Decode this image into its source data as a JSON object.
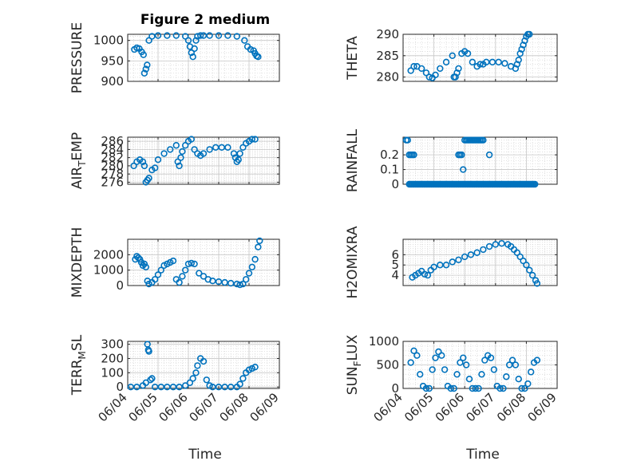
{
  "figure_title": "Figure 2 medium",
  "xlabel": "Time",
  "xticks": [
    "06/04",
    "06/05",
    "06/06",
    "06/07",
    "06/08",
    "06/09"
  ],
  "marker_color": "#0072BD",
  "chart_data": [
    {
      "type": "scatter",
      "ylabel": "PRESSURE",
      "ylim": [
        900,
        1015
      ],
      "yticks": [
        900,
        950,
        1000
      ],
      "xlim": [
        0,
        5
      ],
      "x": [
        0.22,
        0.3,
        0.38,
        0.46,
        0.52,
        0.55,
        0.6,
        0.64,
        0.7,
        0.8,
        1,
        1.3,
        1.6,
        1.9,
        2,
        2.05,
        2.1,
        2.15,
        2.2,
        2.25,
        2.3,
        2.4,
        2.5,
        2.7,
        3,
        3.3,
        3.6,
        3.85,
        3.95,
        4.05,
        4.15,
        4.2,
        4.25,
        4.3
      ],
      "y": [
        978,
        982,
        980,
        972,
        965,
        920,
        930,
        940,
        1000,
        1010,
        1012,
        1012,
        1012,
        1010,
        1000,
        985,
        970,
        960,
        980,
        1000,
        1010,
        1012,
        1012,
        1012,
        1012,
        1012,
        1010,
        1000,
        985,
        978,
        975,
        968,
        962,
        960
      ]
    },
    {
      "type": "scatter",
      "ylabel": "THETA",
      "ylim": [
        279,
        290
      ],
      "yticks": [
        280,
        285,
        290
      ],
      "xlim": [
        0,
        5
      ],
      "x": [
        0.25,
        0.35,
        0.45,
        0.6,
        0.75,
        0.85,
        0.95,
        1.05,
        1.2,
        1.4,
        1.6,
        1.65,
        1.7,
        1.75,
        1.8,
        1.9,
        2,
        2.1,
        2.25,
        2.4,
        2.5,
        2.6,
        2.7,
        2.9,
        3.1,
        3.3,
        3.5,
        3.65,
        3.7,
        3.75,
        3.8,
        3.85,
        3.9,
        3.95,
        4,
        4.05,
        4.1
      ],
      "y": [
        281.5,
        282.5,
        282.5,
        282,
        281,
        280,
        279.8,
        280.5,
        282,
        283.5,
        285,
        280,
        280,
        281,
        282,
        285.5,
        286,
        285.5,
        283.5,
        282.5,
        283,
        283,
        283.5,
        283.5,
        283.5,
        283.2,
        282.5,
        282,
        283,
        284,
        285.5,
        286.5,
        287.5,
        288.5,
        289.5,
        290,
        290
      ]
    },
    {
      "type": "scatter",
      "ylabel": "AIR_TEMP",
      "ylim": [
        275.5,
        287
      ],
      "yticks": [
        276,
        278,
        280,
        282,
        284,
        286
      ],
      "xlim": [
        0,
        5
      ],
      "x": [
        0.2,
        0.3,
        0.4,
        0.5,
        0.55,
        0.6,
        0.65,
        0.7,
        0.8,
        0.9,
        1,
        1.2,
        1.4,
        1.6,
        1.65,
        1.7,
        1.75,
        1.8,
        1.9,
        2,
        2.1,
        2.2,
        2.3,
        2.4,
        2.5,
        2.7,
        2.9,
        3.1,
        3.3,
        3.5,
        3.55,
        3.6,
        3.65,
        3.7,
        3.8,
        3.9,
        4,
        4.1,
        4.2
      ],
      "y": [
        280,
        281,
        281.5,
        281,
        280,
        276,
        276.5,
        277,
        279,
        279.5,
        281.5,
        283,
        284,
        285,
        281,
        280,
        282,
        283.5,
        285,
        286,
        286.5,
        284,
        283,
        282.5,
        283,
        284,
        284.5,
        284.5,
        284.5,
        283,
        282,
        281,
        281.5,
        283,
        284.5,
        285.5,
        286,
        286.5,
        286.5
      ]
    },
    {
      "type": "scatter",
      "ylabel": "RAINFALL",
      "ylim": [
        0,
        0.32
      ],
      "yticks": [
        0,
        0.1,
        0.2
      ],
      "xlim": [
        0,
        5
      ],
      "x": [
        0.1,
        0.15,
        0.2,
        0.25,
        0.3,
        0.35,
        1.8,
        1.85,
        1.9,
        1.95,
        2,
        2.05,
        2.1,
        2.15,
        2.2,
        2.25,
        2.3,
        2.35,
        2.4,
        2.45,
        2.5,
        2.55,
        2.6,
        2.8
      ],
      "y": [
        0.3,
        0.3,
        0.2,
        0.2,
        0.2,
        0.2,
        0.2,
        0.2,
        0.2,
        0.1,
        0.3,
        0.3,
        0.3,
        0.3,
        0.3,
        0.3,
        0.3,
        0.3,
        0.3,
        0.3,
        0.3,
        0.3,
        0.3,
        0.2
      ],
      "baseline": 0,
      "baseline_xrange": [
        0.2,
        4.3
      ]
    },
    {
      "type": "scatter",
      "ylabel": "MIXDEPTH",
      "ylim": [
        0,
        3000
      ],
      "yticks": [
        0,
        1000,
        2000
      ],
      "xlim": [
        0,
        5
      ],
      "x": [
        0.25,
        0.3,
        0.35,
        0.4,
        0.45,
        0.5,
        0.55,
        0.6,
        0.65,
        0.7,
        0.8,
        0.9,
        1,
        1.1,
        1.2,
        1.3,
        1.4,
        1.5,
        1.6,
        1.7,
        1.8,
        1.9,
        2,
        2.1,
        2.2,
        2.35,
        2.5,
        2.65,
        2.8,
        3,
        3.2,
        3.4,
        3.6,
        3.7,
        3.8,
        3.9,
        4,
        4.1,
        4.2,
        4.3,
        4.35
      ],
      "y": [
        1700,
        1900,
        1800,
        1700,
        1500,
        1300,
        1400,
        1200,
        300,
        100,
        200,
        400,
        700,
        1000,
        1300,
        1400,
        1500,
        1600,
        400,
        200,
        600,
        1000,
        1400,
        1450,
        1400,
        800,
        600,
        400,
        300,
        250,
        200,
        150,
        100,
        50,
        100,
        400,
        800,
        1200,
        1700,
        2500,
        2900
      ]
    },
    {
      "type": "scatter",
      "ylabel": "H2OMIXRA",
      "ylim": [
        3,
        7.5
      ],
      "yticks": [
        4,
        5,
        6
      ],
      "xlim": [
        0,
        5
      ],
      "x": [
        0.3,
        0.4,
        0.5,
        0.6,
        0.7,
        0.8,
        0.9,
        1,
        1.2,
        1.4,
        1.6,
        1.8,
        2,
        2.2,
        2.4,
        2.6,
        2.8,
        3,
        3.2,
        3.4,
        3.5,
        3.6,
        3.7,
        3.8,
        3.9,
        4,
        4.1,
        4.2,
        4.3,
        4.35
      ],
      "y": [
        3.8,
        4,
        4.2,
        4.4,
        4.1,
        4,
        4.5,
        4.8,
        5,
        5,
        5.3,
        5.5,
        5.8,
        6,
        6.2,
        6.5,
        6.8,
        7,
        7.1,
        7,
        6.8,
        6.5,
        6.2,
        5.8,
        5.4,
        5,
        4.5,
        4,
        3.5,
        3.2
      ]
    },
    {
      "type": "scatter",
      "ylabel": "TERR_MSL",
      "ylim": [
        -10,
        320
      ],
      "yticks": [
        0,
        100,
        200,
        300
      ],
      "xlim": [
        0,
        5
      ],
      "x": [
        0.1,
        0.3,
        0.5,
        0.6,
        0.65,
        0.68,
        0.7,
        0.75,
        0.8,
        0.9,
        1.1,
        1.3,
        1.5,
        1.7,
        1.9,
        2.05,
        2.15,
        2.25,
        2.3,
        2.4,
        2.5,
        2.6,
        2.7,
        2.8,
        3,
        3.2,
        3.4,
        3.6,
        3.7,
        3.8,
        3.9,
        4,
        4.1,
        4.2
      ],
      "y": [
        0,
        0,
        10,
        30,
        300,
        260,
        250,
        50,
        60,
        0,
        0,
        0,
        0,
        0,
        10,
        30,
        60,
        100,
        150,
        200,
        180,
        50,
        10,
        0,
        0,
        0,
        0,
        0,
        20,
        60,
        100,
        120,
        130,
        140
      ]
    },
    {
      "type": "scatter",
      "ylabel": "SUN_FLUX",
      "ylim": [
        0,
        1000
      ],
      "yticks": [
        0,
        500,
        1000
      ],
      "xlim": [
        0,
        5
      ],
      "x": [
        0.25,
        0.35,
        0.45,
        0.55,
        0.65,
        0.75,
        0.85,
        0.95,
        1.05,
        1.15,
        1.25,
        1.35,
        1.45,
        1.55,
        1.65,
        1.75,
        1.85,
        1.95,
        2.05,
        2.15,
        2.25,
        2.35,
        2.45,
        2.55,
        2.65,
        2.75,
        2.85,
        2.95,
        3.05,
        3.15,
        3.25,
        3.35,
        3.45,
        3.55,
        3.65,
        3.75,
        3.85,
        3.95,
        4.05,
        4.15,
        4.25,
        4.35
      ],
      "y": [
        550,
        800,
        700,
        300,
        50,
        0,
        0,
        400,
        650,
        780,
        700,
        400,
        50,
        0,
        0,
        300,
        550,
        650,
        500,
        200,
        0,
        0,
        0,
        300,
        600,
        700,
        650,
        400,
        50,
        0,
        0,
        250,
        500,
        600,
        500,
        200,
        0,
        0,
        100,
        350,
        550,
        600
      ]
    }
  ]
}
